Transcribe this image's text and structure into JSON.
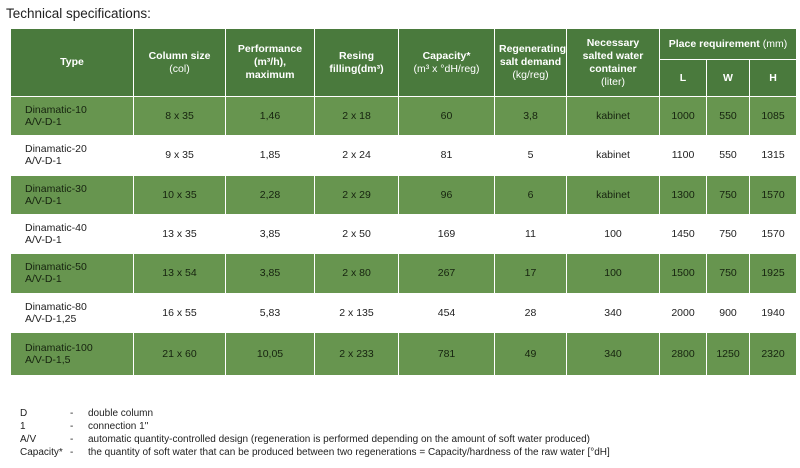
{
  "title": "Technical specifications:",
  "header": {
    "type": "Type",
    "column_size": "Column size",
    "column_size_unit": "(col)",
    "performance_l1": "Performance",
    "performance_l2": "(m³/h),",
    "performance_l3": "maximum",
    "resing_l1": "Resing",
    "resing_l2": "filling(dm³)",
    "capacity_l1": "Capacity*",
    "capacity_l2": "(m³ x °dH/reg)",
    "regen_l1": "Regenerating",
    "regen_l2": "salt demand",
    "regen_l3": "(kg/reg)",
    "container_l1": "Necessary",
    "container_l2": "salted water",
    "container_l3": "container",
    "container_l4": "(liter)",
    "place_req": "Place requirement",
    "place_unit": "(mm)",
    "l": "L",
    "w": "W",
    "h": "H"
  },
  "rows": [
    {
      "type_l1": "Dinamatic-10",
      "type_l2": "A/V-D-1",
      "col": "8 x 35",
      "perf": "1,46",
      "resing": "2 x 18",
      "capacity": "60",
      "salt": "3,8",
      "container": "kabinet",
      "l": "1000",
      "w": "550",
      "h": "1085"
    },
    {
      "type_l1": "Dinamatic-20",
      "type_l2": "A/V-D-1",
      "col": "9 x 35",
      "perf": "1,85",
      "resing": "2 x 24",
      "capacity": "81",
      "salt": "5",
      "container": "kabinet",
      "l": "1100",
      "w": "550",
      "h": "1315"
    },
    {
      "type_l1": "Dinamatic-30",
      "type_l2": "A/V-D-1",
      "col": "10 x 35",
      "perf": "2,28",
      "resing": "2 x 29",
      "capacity": "96",
      "salt": "6",
      "container": "kabinet",
      "l": "1300",
      "w": "750",
      "h": "1570"
    },
    {
      "type_l1": "Dinamatic-40",
      "type_l2": "A/V-D-1",
      "col": "13 x 35",
      "perf": "3,85",
      "resing": "2 x 50",
      "capacity": "169",
      "salt": "11",
      "container": "100",
      "l": "1450",
      "w": "750",
      "h": "1570"
    },
    {
      "type_l1": "Dinamatic-50",
      "type_l2": "A/V-D-1",
      "col": "13 x 54",
      "perf": "3,85",
      "resing": "2 x 80",
      "capacity": "267",
      "salt": "17",
      "container": "100",
      "l": "1500",
      "w": "750",
      "h": "1925"
    },
    {
      "type_l1": "Dinamatic-80",
      "type_l2": "A/V-D-1,25",
      "col": "16 x 55",
      "perf": "5,83",
      "resing": "2 x 135",
      "capacity": "454",
      "salt": "28",
      "container": "340",
      "l": "2000",
      "w": "900",
      "h": "1940"
    },
    {
      "type_l1": "Dinamatic-100",
      "type_l2": "A/V-D-1,5",
      "col": "21 x 60",
      "perf": "10,05",
      "resing": "2 x 233",
      "capacity": "781",
      "salt": "49",
      "container": "340",
      "l": "2800",
      "w": "1250",
      "h": "2320"
    }
  ],
  "notes": [
    {
      "key": "D",
      "sep": "-",
      "text": "double column"
    },
    {
      "key": "1",
      "sep": "-",
      "text": "connection  1\""
    },
    {
      "key": "A/V",
      "sep": "-",
      "text": "automatic quantity-controlled design (regeneration is performed depending on the amount of soft water produced)"
    },
    {
      "key": "Capacity*",
      "sep": "-",
      "text": "the quantity of soft water that can be produced between two regenerations = Capacity/hardness of the raw water [°dH]"
    }
  ],
  "colors": {
    "header_green": "#4a7a3d",
    "row_green": "#67954f",
    "row_white": "#ffffff"
  }
}
